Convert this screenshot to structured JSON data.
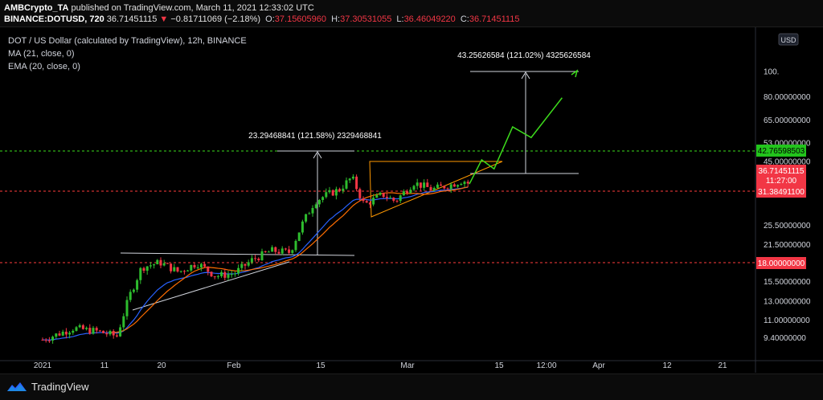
{
  "header": {
    "author": "AMBCrypto_TA",
    "published_text": "published on TradingView.com, March 11, 2021 12:33:02 UTC",
    "symbol": "BINANCE:DOTUSD, 720",
    "last": "36.71451115",
    "change_arrow": "▼",
    "change": "−0.81711069 (−2.18%)",
    "open_label": "O:",
    "open": "37.15605960",
    "high_label": "H:",
    "high": "37.30531055",
    "low_label": "L:",
    "low": "36.46049220",
    "close_label": "C:",
    "close": "36.71451115"
  },
  "legend": {
    "title": "DOT / US Dollar (calculated by TradingView), 12h, BINANCE",
    "ma": "MA (21, close, 0)",
    "ema": "EMA (20, close, 0)"
  },
  "currency_button": "USD",
  "colors": {
    "up": "#26a69a",
    "candle_up": "#2ebd2e",
    "candle_down": "#f23645",
    "ma": "#ff6d00",
    "ema": "#2962ff",
    "projection": "#3ddc1c",
    "triangle": "#ff9800",
    "support": "#ff3b3b"
  },
  "chart_data": {
    "type": "line",
    "symbol": "DOTUSD",
    "timeframe": "12h",
    "x_ticks": [
      "2021",
      "11",
      "20",
      "Feb",
      "15",
      "Mar",
      "15",
      "12:00",
      "Apr",
      "12",
      "21"
    ],
    "y_scale": "log",
    "y_ticks": [
      "100.",
      "80.00000000",
      "65.00000000",
      "53.00000000",
      "45.00000000",
      "25.50000000",
      "21.50000000",
      "15.50000000",
      "13.00000000",
      "11.00000000",
      "9.40000000"
    ],
    "price_labels": [
      {
        "value": "42.76598503",
        "role": "resistance"
      },
      {
        "value": "36.71451115",
        "role": "last",
        "countdown": "11:27:00"
      },
      {
        "value": "31.38491100",
        "role": "support"
      },
      {
        "value": "18.00000000",
        "role": "support"
      }
    ],
    "price_path": [
      {
        "t": "2021-01-01",
        "y": 9.2
      },
      {
        "t": "2021-01-06",
        "y": 10.2
      },
      {
        "t": "2021-01-10",
        "y": 9.9
      },
      {
        "t": "2021-01-13",
        "y": 9.5
      },
      {
        "t": "2021-01-15",
        "y": 13.5
      },
      {
        "t": "2021-01-17",
        "y": 17.5
      },
      {
        "t": "2021-01-20",
        "y": 18.3
      },
      {
        "t": "2021-01-23",
        "y": 16.8
      },
      {
        "t": "2021-01-26",
        "y": 18.2
      },
      {
        "t": "2021-01-29",
        "y": 16.2
      },
      {
        "t": "2021-02-01",
        "y": 16.6
      },
      {
        "t": "2021-02-04",
        "y": 18.8
      },
      {
        "t": "2021-02-07",
        "y": 20.3
      },
      {
        "t": "2021-02-10",
        "y": 20.0
      },
      {
        "t": "2021-02-12",
        "y": 25.8
      },
      {
        "t": "2021-02-14",
        "y": 31.5
      },
      {
        "t": "2021-02-16",
        "y": 33.4
      },
      {
        "t": "2021-02-18",
        "y": 35.0
      },
      {
        "t": "2021-02-20",
        "y": 39.0
      },
      {
        "t": "2021-02-22",
        "y": 30.5
      },
      {
        "t": "2021-02-25",
        "y": 33.5
      },
      {
        "t": "2021-02-27",
        "y": 31.5
      },
      {
        "t": "2021-03-02",
        "y": 37.2
      },
      {
        "t": "2021-03-05",
        "y": 35.0
      },
      {
        "t": "2021-03-08",
        "y": 36.5
      },
      {
        "t": "2021-03-10",
        "y": 38.0
      },
      {
        "t": "2021-03-11",
        "y": 36.71
      }
    ],
    "projection_path": [
      {
        "t": "2021-03-11",
        "y": 36.7
      },
      {
        "t": "2021-03-13",
        "y": 45.5
      },
      {
        "t": "2021-03-15",
        "y": 42.0
      },
      {
        "t": "2021-03-18",
        "y": 61.0
      },
      {
        "t": "2021-03-21",
        "y": 55.5
      },
      {
        "t": "2021-03-26",
        "y": 79.0
      }
    ],
    "annotations": [
      {
        "text": "23.29468841 (121.58%) 2329468841",
        "from": 19.0,
        "to": 42.3
      },
      {
        "text": "43.25626584 (121.02%) 4325626584",
        "from": 36.5,
        "to": 79.5
      }
    ]
  },
  "footer": {
    "brand": "TradingView"
  }
}
